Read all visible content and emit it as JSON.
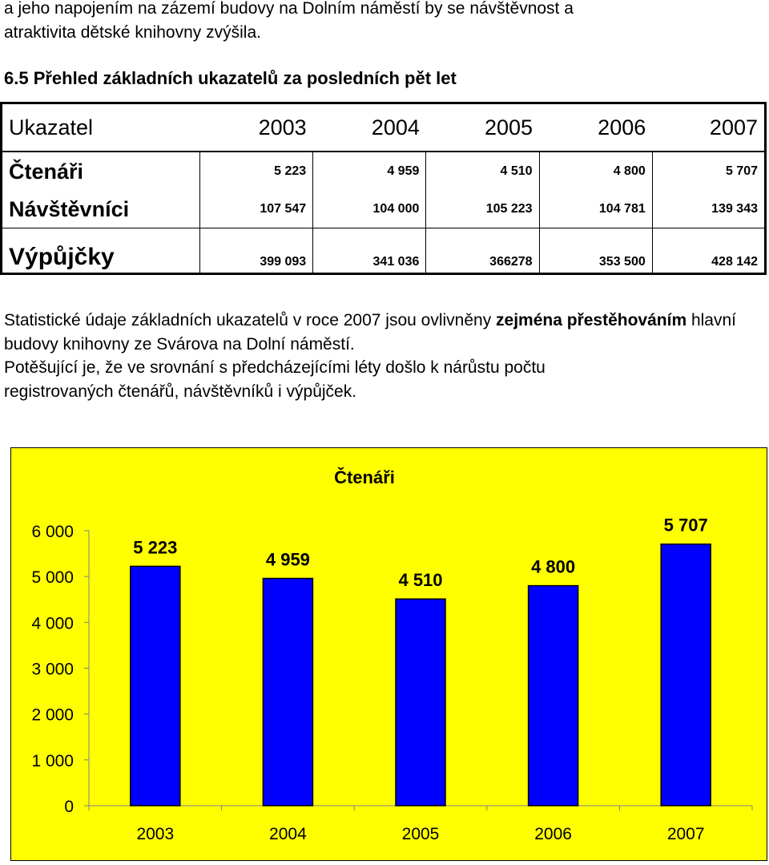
{
  "intro": {
    "line1": "a jeho napojením na zázemí budovy na Dolním náměstí by se návštěvnost  a",
    "line2": "atraktivita dětské knihovny zvýšila."
  },
  "heading": "6.5 Přehled základních ukazatelů za posledních pět let",
  "table": {
    "header": [
      "Ukazatel",
      "2003",
      "2004",
      "2005",
      "2006",
      "2007"
    ],
    "rows": [
      {
        "label": "Čtenáři",
        "values": [
          "5 223",
          "4 959",
          "4 510",
          "4 800",
          "5 707"
        ]
      },
      {
        "label": "Návštěvníci",
        "values": [
          "107 547",
          "104 000",
          "105 223",
          "104 781",
          "139 343"
        ]
      },
      {
        "label": "Výpůjčky",
        "values": [
          "399 093",
          "341 036",
          "366278",
          "353 500",
          "428 142"
        ]
      }
    ]
  },
  "paragraph": {
    "part1": "Statistické údaje základních ukazatelů v roce   2007 jsou ovlivněny ",
    "bold1": "zejména přestěhováním",
    "part2": " hlavní budovy knihovny ze Svárova na Dolní náměstí.",
    "line3": "Potěšující je, že ve srovnání s předcházejícími léty  došlo k nárůstu počtu",
    "line4": "registrovaných čtenářů, návštěvníků i výpůjček."
  },
  "chart_data": {
    "type": "bar",
    "title": "Čtenáři",
    "categories": [
      "2003",
      "2004",
      "2005",
      "2006",
      "2007"
    ],
    "values": [
      5223,
      4959,
      4510,
      4800,
      5707
    ],
    "value_labels": [
      "5 223",
      "4 959",
      "4 510",
      "4 800",
      "5 707"
    ],
    "ylim": [
      0,
      6000
    ],
    "yticks": [
      0,
      1000,
      2000,
      3000,
      4000,
      5000,
      6000
    ],
    "ytick_labels": [
      "0",
      "1 000",
      "2 000",
      "3 000",
      "4 000",
      "5 000",
      "6 000"
    ],
    "grid": false,
    "legend": "none",
    "colors": {
      "background": "#ffff00",
      "bar": "#0000ff",
      "bar_edge": "#000000"
    }
  }
}
